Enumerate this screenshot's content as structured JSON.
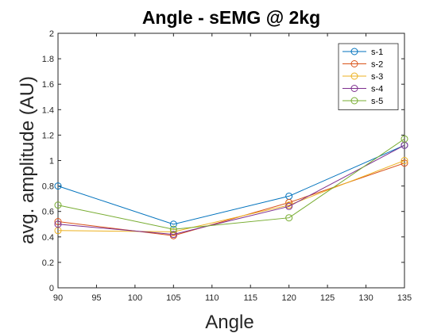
{
  "chart_data": {
    "type": "line",
    "title": "Angle - sEMG @ 2kg",
    "xlabel": "Angle",
    "ylabel": "avg. amplitude (AU)",
    "xlim": [
      90,
      135
    ],
    "ylim": [
      0,
      2
    ],
    "xticks": [
      "90",
      "95",
      "100",
      "105",
      "110",
      "115",
      "120",
      "125",
      "130",
      "135"
    ],
    "yticks": [
      "0",
      "0.2",
      "0.4",
      "0.6",
      "0.8",
      "1",
      "1.2",
      "1.4",
      "1.6",
      "1.8",
      "2"
    ],
    "x": [
      90,
      105,
      120,
      135
    ],
    "series": [
      {
        "name": "s-1",
        "color": "#0072BD",
        "values": [
          0.8,
          0.5,
          0.72,
          1.12
        ]
      },
      {
        "name": "s-2",
        "color": "#D95319",
        "values": [
          0.52,
          0.41,
          0.67,
          0.98
        ]
      },
      {
        "name": "s-3",
        "color": "#EDB120",
        "values": [
          0.45,
          0.44,
          0.65,
          1.0
        ]
      },
      {
        "name": "s-4",
        "color": "#7E2F8E",
        "values": [
          0.5,
          0.42,
          0.64,
          1.12
        ]
      },
      {
        "name": "s-5",
        "color": "#77AC30",
        "values": [
          0.65,
          0.46,
          0.55,
          1.17
        ]
      }
    ],
    "legend_position": "top-right",
    "grid": false,
    "marker": "circle-open"
  }
}
